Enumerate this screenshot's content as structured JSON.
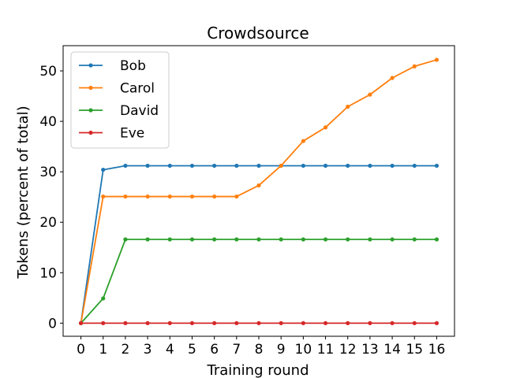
{
  "chart_data": {
    "type": "line",
    "title": "Crowdsource",
    "xlabel": "Training round",
    "ylabel": "Tokens (percent of total)",
    "xlim": [
      -0.8,
      16.8
    ],
    "ylim": [
      -2.6,
      55.0
    ],
    "xticks": [
      0,
      1,
      2,
      3,
      4,
      5,
      6,
      7,
      8,
      9,
      10,
      11,
      12,
      13,
      14,
      15,
      16
    ],
    "yticks": [
      0,
      10,
      20,
      30,
      40,
      50
    ],
    "grid": false,
    "legend_position": "upper-left",
    "x": [
      0,
      1,
      2,
      3,
      4,
      5,
      6,
      7,
      8,
      9,
      10,
      11,
      12,
      13,
      14,
      15,
      16
    ],
    "series": [
      {
        "name": "Bob",
        "color": "#1f77b4",
        "values": [
          0,
          30.4,
          31.2,
          31.2,
          31.2,
          31.2,
          31.2,
          31.2,
          31.2,
          31.2,
          31.2,
          31.2,
          31.2,
          31.2,
          31.2,
          31.2,
          31.2
        ]
      },
      {
        "name": "Carol",
        "color": "#ff7f0e",
        "values": [
          0,
          25.1,
          25.1,
          25.1,
          25.1,
          25.1,
          25.1,
          25.1,
          27.3,
          31.2,
          36.1,
          38.8,
          42.9,
          45.3,
          48.6,
          50.9,
          52.2
        ]
      },
      {
        "name": "David",
        "color": "#2ca02c",
        "values": [
          0,
          4.9,
          16.6,
          16.6,
          16.6,
          16.6,
          16.6,
          16.6,
          16.6,
          16.6,
          16.6,
          16.6,
          16.6,
          16.6,
          16.6,
          16.6,
          16.6
        ]
      },
      {
        "name": "Eve",
        "color": "#d62728",
        "values": [
          0,
          0,
          0,
          0,
          0,
          0,
          0,
          0,
          0,
          0,
          0,
          0,
          0,
          0,
          0,
          0,
          0
        ]
      }
    ]
  }
}
